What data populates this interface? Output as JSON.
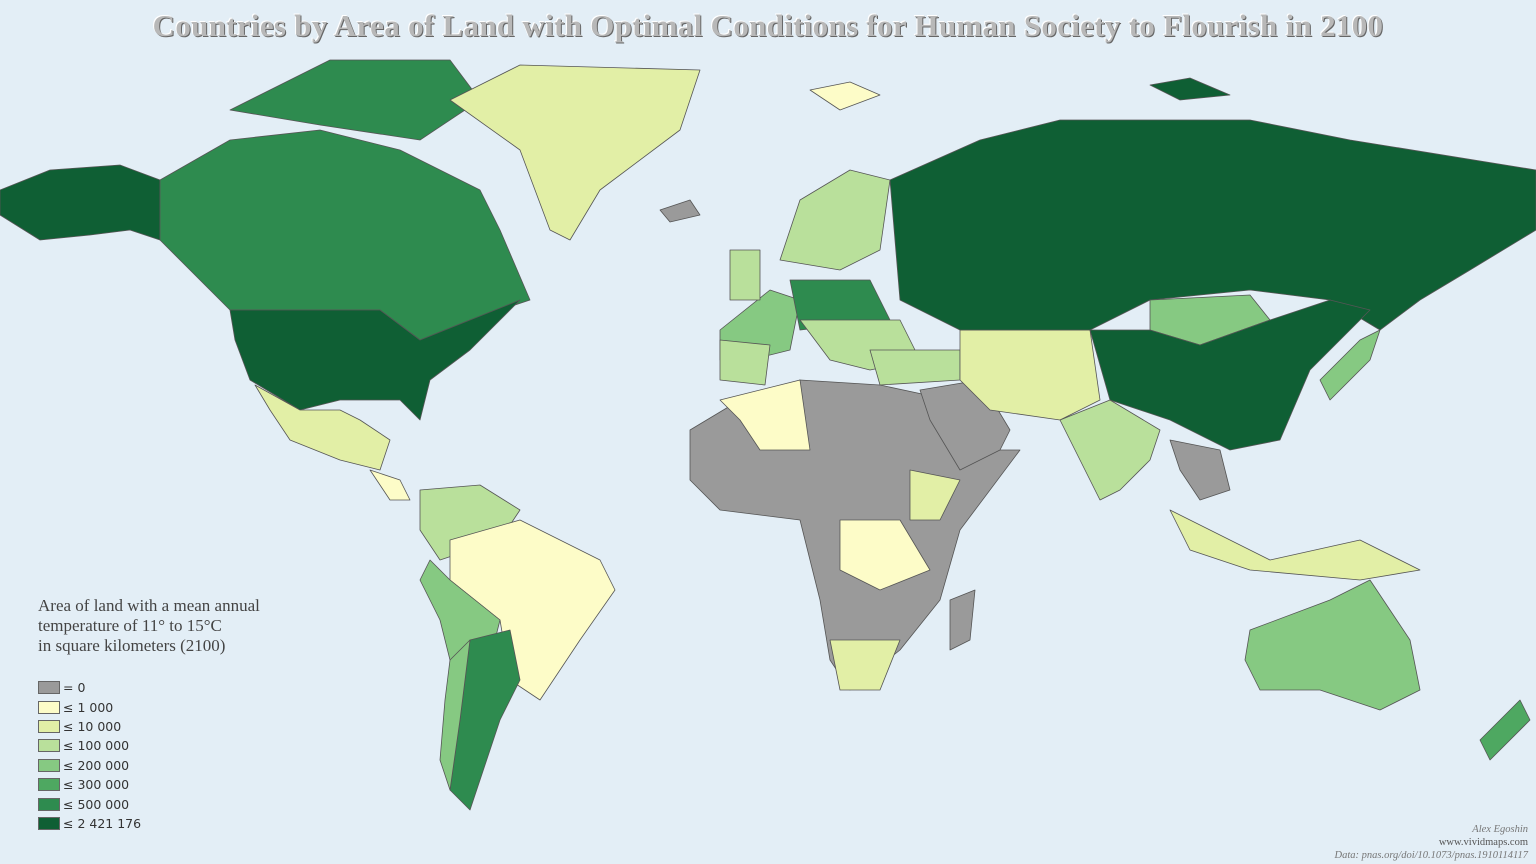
{
  "title": "Countries by Area of Land with Optimal Conditions for Human Society to Flourish in 2100",
  "legend": {
    "title_lines": [
      "Area of land with a mean annual",
      "temperature of 11° to 15°C",
      "in square kilometers (2100)"
    ],
    "items": [
      {
        "label": "= 0",
        "color": "#9a9a9a"
      },
      {
        "label": "≤ 1 000",
        "color": "#fdfcc8"
      },
      {
        "label": "≤ 10 000",
        "color": "#e2efa6"
      },
      {
        "label": "≤ 100 000",
        "color": "#b9e09b"
      },
      {
        "label": "≤ 200 000",
        "color": "#86c982"
      },
      {
        "label": "≤ 300 000",
        "color": "#4ea861"
      },
      {
        "label": "≤ 500 000",
        "color": "#2e8b4f"
      },
      {
        "label": "≤ 2 421 176",
        "color": "#0f5f34"
      }
    ]
  },
  "credits": {
    "author": "Alex Egoshin",
    "site": "www.vividmaps.com",
    "source": "Data: pnas.org/doi/10.1073/pnas.1910114117"
  }
}
